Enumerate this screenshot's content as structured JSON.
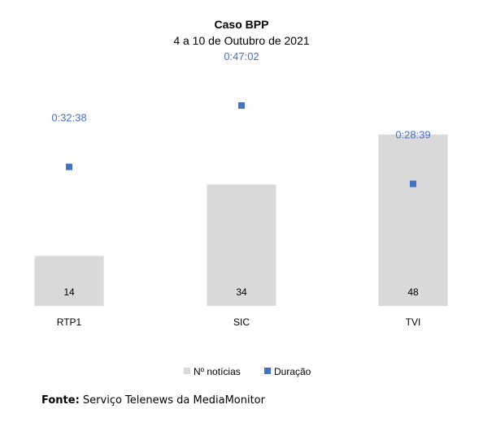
{
  "chart_data": {
    "type": "bar",
    "title": "Caso BPP",
    "subtitle": "4 a 10 de Outubro de 2021",
    "categories": [
      "RTP1",
      "SIC",
      "TVI"
    ],
    "series": [
      {
        "name": "Nº notícias",
        "kind": "bar",
        "color": "#d9d9d9",
        "values": [
          14,
          34,
          48
        ],
        "value_labels": [
          "14",
          "34",
          "48"
        ]
      },
      {
        "name": "Duração",
        "kind": "marker",
        "color": "#4472c4",
        "values_seconds": [
          1958,
          2822,
          1719
        ],
        "value_labels": [
          "0:32:38",
          "0:47:02",
          "0:28:39"
        ]
      }
    ],
    "grid": false,
    "legend_position": "bottom"
  },
  "source": {
    "label": "Fonte:",
    "text": "Serviço Telenews da MediaMonitor"
  }
}
